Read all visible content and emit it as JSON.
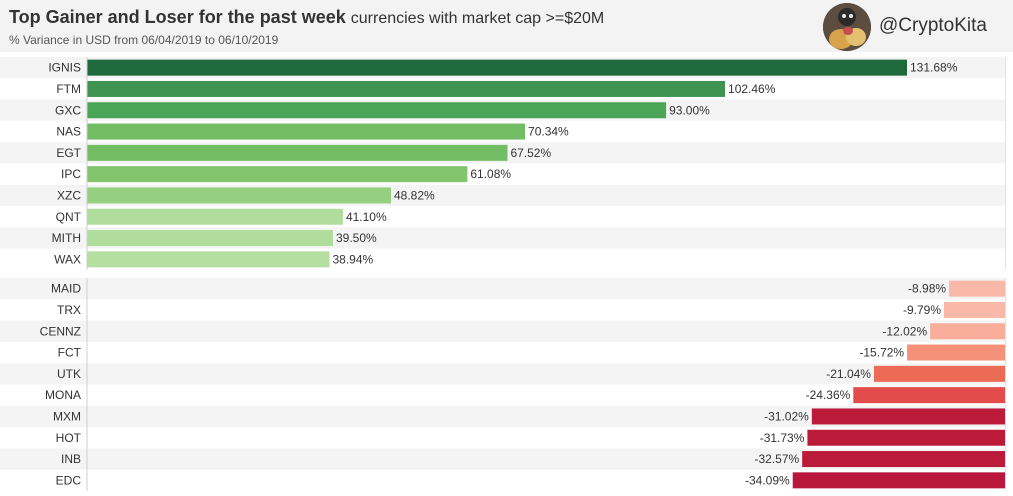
{
  "header": {
    "title_main": "Top Gainer and Loser for the past week",
    "title_sub": "currencies with market cap >=$20M",
    "subtitle": "% Variance in USD from 06/04/2019 to 06/10/2019",
    "handle": "@CryptoKita"
  },
  "chart_data": [
    {
      "type": "bar",
      "orientation": "horizontal",
      "categories": [
        "IGNIS",
        "FTM",
        "GXC",
        "NAS",
        "EGT",
        "IPC",
        "XZC",
        "QNT",
        "MITH",
        "WAX"
      ],
      "values": [
        131.68,
        102.46,
        93.0,
        70.34,
        67.52,
        61.08,
        48.82,
        41.1,
        39.5,
        38.94
      ],
      "labels": [
        "131.68%",
        "102.46%",
        "93.00%",
        "70.34%",
        "67.52%",
        "61.08%",
        "48.82%",
        "41.10%",
        "39.50%",
        "38.94%"
      ],
      "colors": [
        "#1f6a3c",
        "#3f9350",
        "#4aa556",
        "#72bc63",
        "#72bc63",
        "#82c56d",
        "#95cf80",
        "#b0dd9b",
        "#b0dd9b",
        "#b4dfa0"
      ]
    },
    {
      "type": "bar",
      "orientation": "horizontal",
      "categories": [
        "MAID",
        "TRX",
        "CENNZ",
        "FCT",
        "UTK",
        "MONA",
        "MXM",
        "HOT",
        "INB",
        "EDC"
      ],
      "values": [
        -8.98,
        -9.79,
        -12.02,
        -15.72,
        -21.04,
        -24.36,
        -31.02,
        -31.73,
        -32.57,
        -34.09
      ],
      "labels": [
        "-8.98%",
        "-9.79%",
        "-12.02%",
        "-15.72%",
        "-21.04%",
        "-24.36%",
        "-31.02%",
        "-31.73%",
        "-32.57%",
        "-34.09%"
      ],
      "colors": [
        "#f9b8a8",
        "#f9b8a8",
        "#f9ae9c",
        "#f69179",
        "#ec6b55",
        "#e24c4a",
        "#bc1a39",
        "#bc1a39",
        "#bc1a39",
        "#b8163a"
      ]
    }
  ]
}
